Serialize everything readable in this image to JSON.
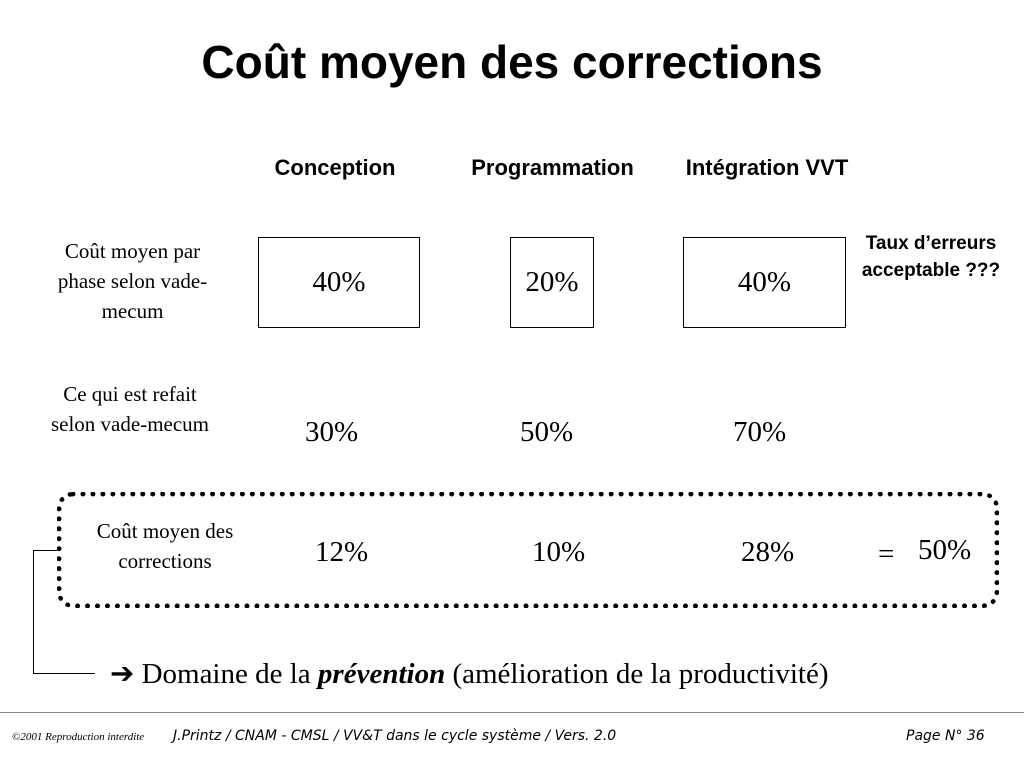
{
  "title": "Coût moyen des corrections",
  "columns": [
    "Conception",
    "Programmation",
    "Intégration VVT"
  ],
  "rows": [
    {
      "label": "Coût moyen par phase selon vade-mecum",
      "values": [
        "40%",
        "20%",
        "40%"
      ]
    },
    {
      "label": "Ce qui est refait selon vade-mecum",
      "values": [
        "30%",
        "50%",
        "70%"
      ]
    },
    {
      "label": "Coût moyen des corrections",
      "values": [
        "12%",
        "10%",
        "28%"
      ]
    }
  ],
  "total": {
    "equals": "=",
    "value": "50%"
  },
  "side_note": "Taux d’erreurs acceptable ???",
  "prevention": {
    "arrow": "➔",
    "text_before": "Domaine de la ",
    "emphasis": "prévention",
    "text_after": " (amélioration de la productivité)"
  },
  "footer": {
    "copyright": "©2001 Reproduction interdite",
    "course": "J.Printz / CNAM - CMSL / VV&T dans le cycle système / Vers. 2.0",
    "page": "Page N° 36"
  }
}
